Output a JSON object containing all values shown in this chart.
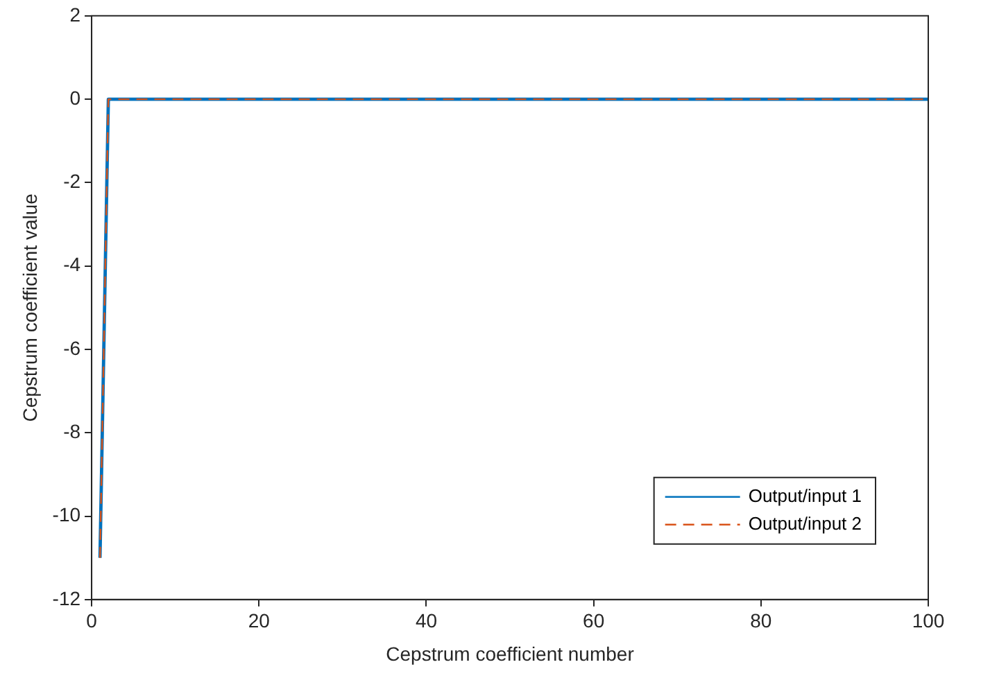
{
  "chart_data": {
    "type": "line",
    "xlabel": "Cepstrum coefficient number",
    "ylabel": "Cepstrum coefficient value",
    "xlim": [
      0,
      100
    ],
    "xticks": [
      0,
      20,
      40,
      60,
      80,
      100
    ],
    "ylim": [
      -12,
      2
    ],
    "yticks": [
      -12,
      -10,
      -8,
      -6,
      -4,
      -2,
      0,
      2
    ],
    "grid": false,
    "legend": "bottom right",
    "marker": "none",
    "series": [
      {
        "name": "Output/input 1",
        "color": "#0072bd",
        "line_style": "solid",
        "x": [
          1,
          2,
          100
        ],
        "values": [
          -11,
          0,
          0
        ]
      },
      {
        "name": "Output/input 2",
        "color": "#d95319",
        "line_style": "dashed",
        "x": [
          1,
          2,
          100
        ],
        "values": [
          -11,
          0,
          0
        ]
      }
    ]
  }
}
